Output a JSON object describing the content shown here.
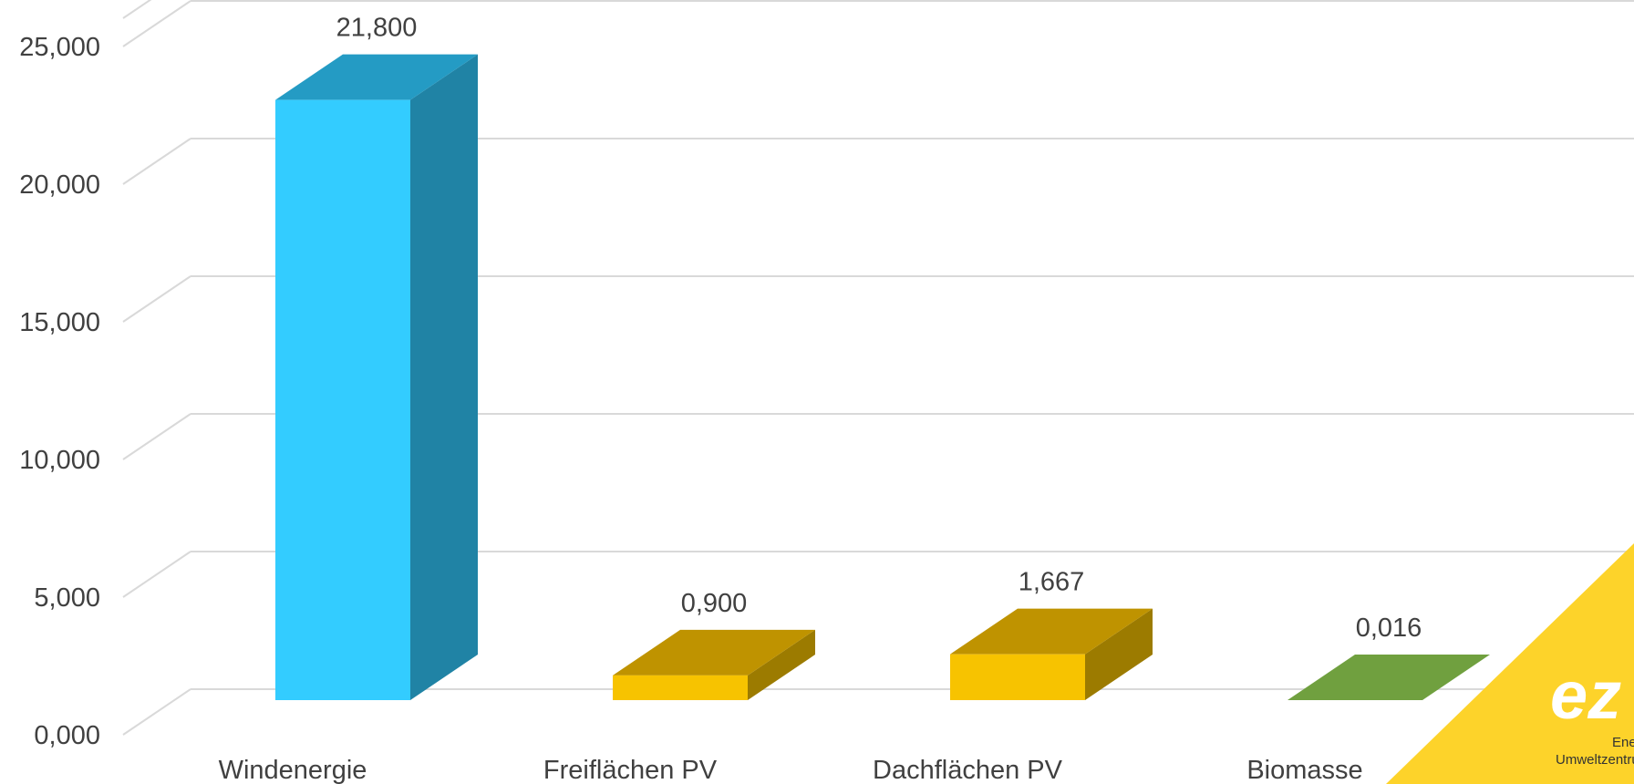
{
  "chart_data": {
    "type": "bar",
    "categories": [
      "Windenergie",
      "Freiflächen PV",
      "Dachflächen PV",
      "Biomasse"
    ],
    "values": [
      21.8,
      0.9,
      1.667,
      0.016
    ],
    "data_labels": [
      "21,800",
      "0,900",
      "1,667",
      "0,016"
    ],
    "ytick_labels": [
      "0,000",
      "5,000",
      "10,000",
      "15,000",
      "20,000",
      "25,000"
    ],
    "ylim": [
      0,
      25
    ],
    "title": "",
    "xlabel": "",
    "ylabel": "",
    "grid": true,
    "style": "3d",
    "bar_colors": [
      {
        "front": "#33ccff",
        "top": "#249bc4",
        "side": "#2083a5"
      },
      {
        "front": "#f7c300",
        "top": "#bf9300",
        "side": "#9c7b00"
      },
      {
        "front": "#f7c300",
        "top": "#bf9300",
        "side": "#9c7b00"
      },
      {
        "front": "#70a03f",
        "top": "#70a03f",
        "side": "#5b8a32"
      }
    ]
  },
  "logo": {
    "text": "ez",
    "line1": "Ene",
    "line2": "Umweltzentru",
    "color": "#fdd32a"
  }
}
